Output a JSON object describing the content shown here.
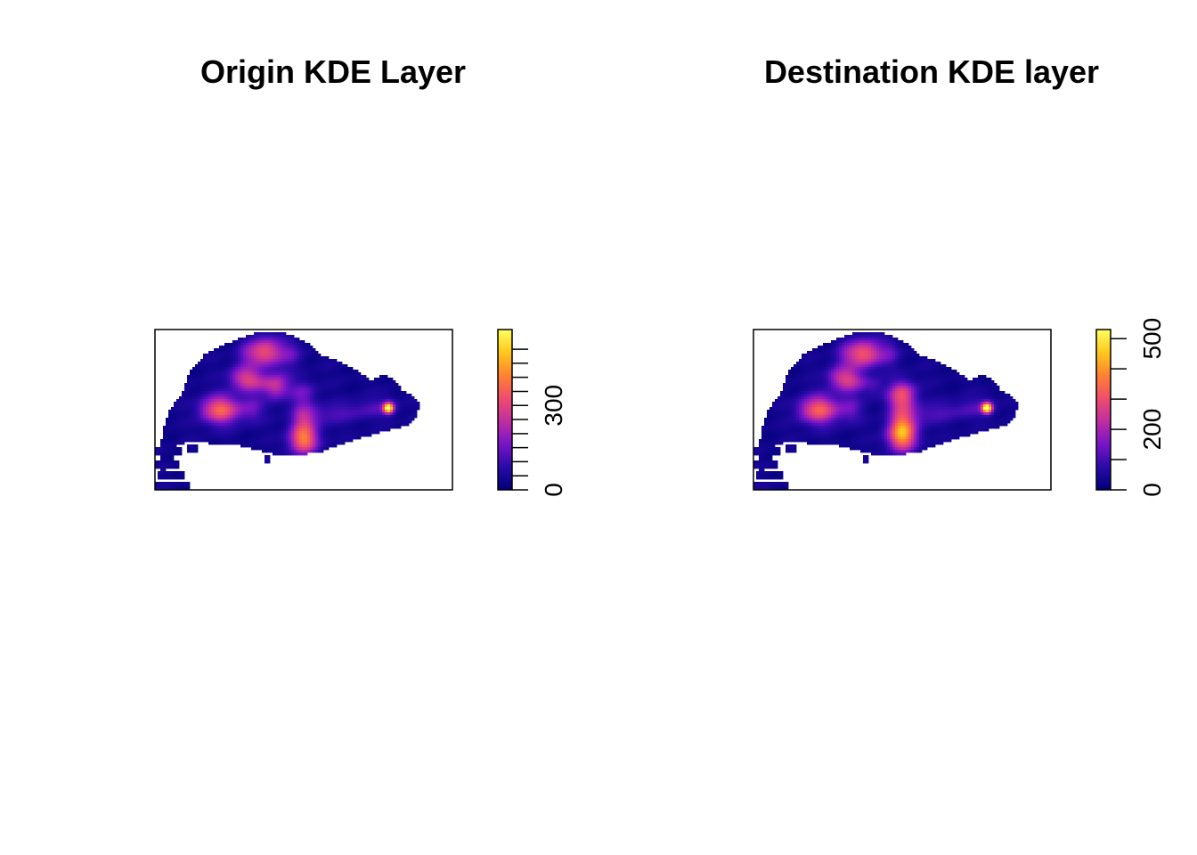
{
  "chart_data": [
    {
      "type": "heatmap",
      "title": "Origin KDE Layer",
      "colorbar": {
        "range": [
          0,
          570
        ],
        "ticks": [
          0,
          50,
          100,
          150,
          200,
          250,
          300,
          350,
          400,
          450,
          500
        ],
        "tick_labels": [
          {
            "value": 0,
            "label": "0"
          },
          {
            "value": 300,
            "label": "300"
          }
        ]
      },
      "hotspots": [
        {
          "name": "east-peak",
          "u": 0.785,
          "v": 0.49,
          "value": 540
        },
        {
          "name": "south-central",
          "u": 0.5,
          "v": 0.68,
          "value": 250
        },
        {
          "name": "west-corridor",
          "u": 0.22,
          "v": 0.5,
          "value": 200
        },
        {
          "name": "north",
          "u": 0.37,
          "v": 0.13,
          "value": 180
        },
        {
          "name": "north-mid",
          "u": 0.31,
          "v": 0.31,
          "value": 170
        },
        {
          "name": "central",
          "u": 0.41,
          "v": 0.35,
          "value": 150
        }
      ],
      "palette": [
        "#00007a",
        "#2a0aa8",
        "#7814c8",
        "#c02ea0",
        "#f04c6c",
        "#ff8232",
        "#ffc81c",
        "#ffff60"
      ]
    },
    {
      "type": "heatmap",
      "title": "Destination KDE layer",
      "colorbar": {
        "range": [
          0,
          530
        ],
        "ticks": [
          0,
          100,
          200,
          300,
          400,
          500
        ],
        "tick_labels": [
          {
            "value": 0,
            "label": "0"
          },
          {
            "value": 200,
            "label": "200"
          },
          {
            "value": 500,
            "label": "500"
          }
        ]
      },
      "hotspots": [
        {
          "name": "east-peak",
          "u": 0.785,
          "v": 0.49,
          "value": 520
        },
        {
          "name": "south-central",
          "u": 0.5,
          "v": 0.65,
          "value": 300
        },
        {
          "name": "west-corridor",
          "u": 0.22,
          "v": 0.5,
          "value": 180
        },
        {
          "name": "north",
          "u": 0.37,
          "v": 0.15,
          "value": 180
        },
        {
          "name": "north-mid",
          "u": 0.31,
          "v": 0.31,
          "value": 160
        },
        {
          "name": "central",
          "u": 0.5,
          "v": 0.42,
          "value": 170
        }
      ],
      "palette": [
        "#00007a",
        "#2a0aa8",
        "#7814c8",
        "#c02ea0",
        "#f04c6c",
        "#ff8232",
        "#ffc81c",
        "#ffff60"
      ]
    }
  ]
}
